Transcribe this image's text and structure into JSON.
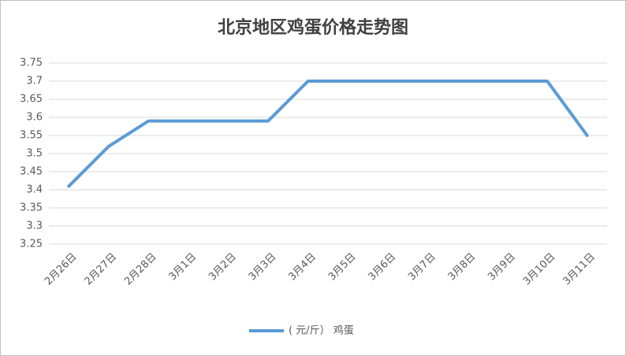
{
  "chart_data": {
    "type": "line",
    "title": "北京地区鸡蛋价格走势图",
    "categories": [
      "2月26日",
      "2月27日",
      "2月28日",
      "3月1日",
      "3月2日",
      "3月3日",
      "3月4日",
      "3月5日",
      "3月6日",
      "3月7日",
      "3月8日",
      "3月9日",
      "3月10日",
      "3月11日"
    ],
    "series": [
      {
        "name": "( 元/斤） 鸡蛋",
        "color": "#5b9bd5",
        "values": [
          3.41,
          3.52,
          3.59,
          3.59,
          3.59,
          3.59,
          3.7,
          3.7,
          3.7,
          3.7,
          3.7,
          3.7,
          3.7,
          3.55
        ]
      }
    ],
    "ylim": [
      3.25,
      3.75
    ],
    "yticks": [
      3.25,
      3.3,
      3.35,
      3.4,
      3.45,
      3.5,
      3.55,
      3.6,
      3.65,
      3.7,
      3.75
    ],
    "grid": true,
    "legend": "bottom"
  }
}
